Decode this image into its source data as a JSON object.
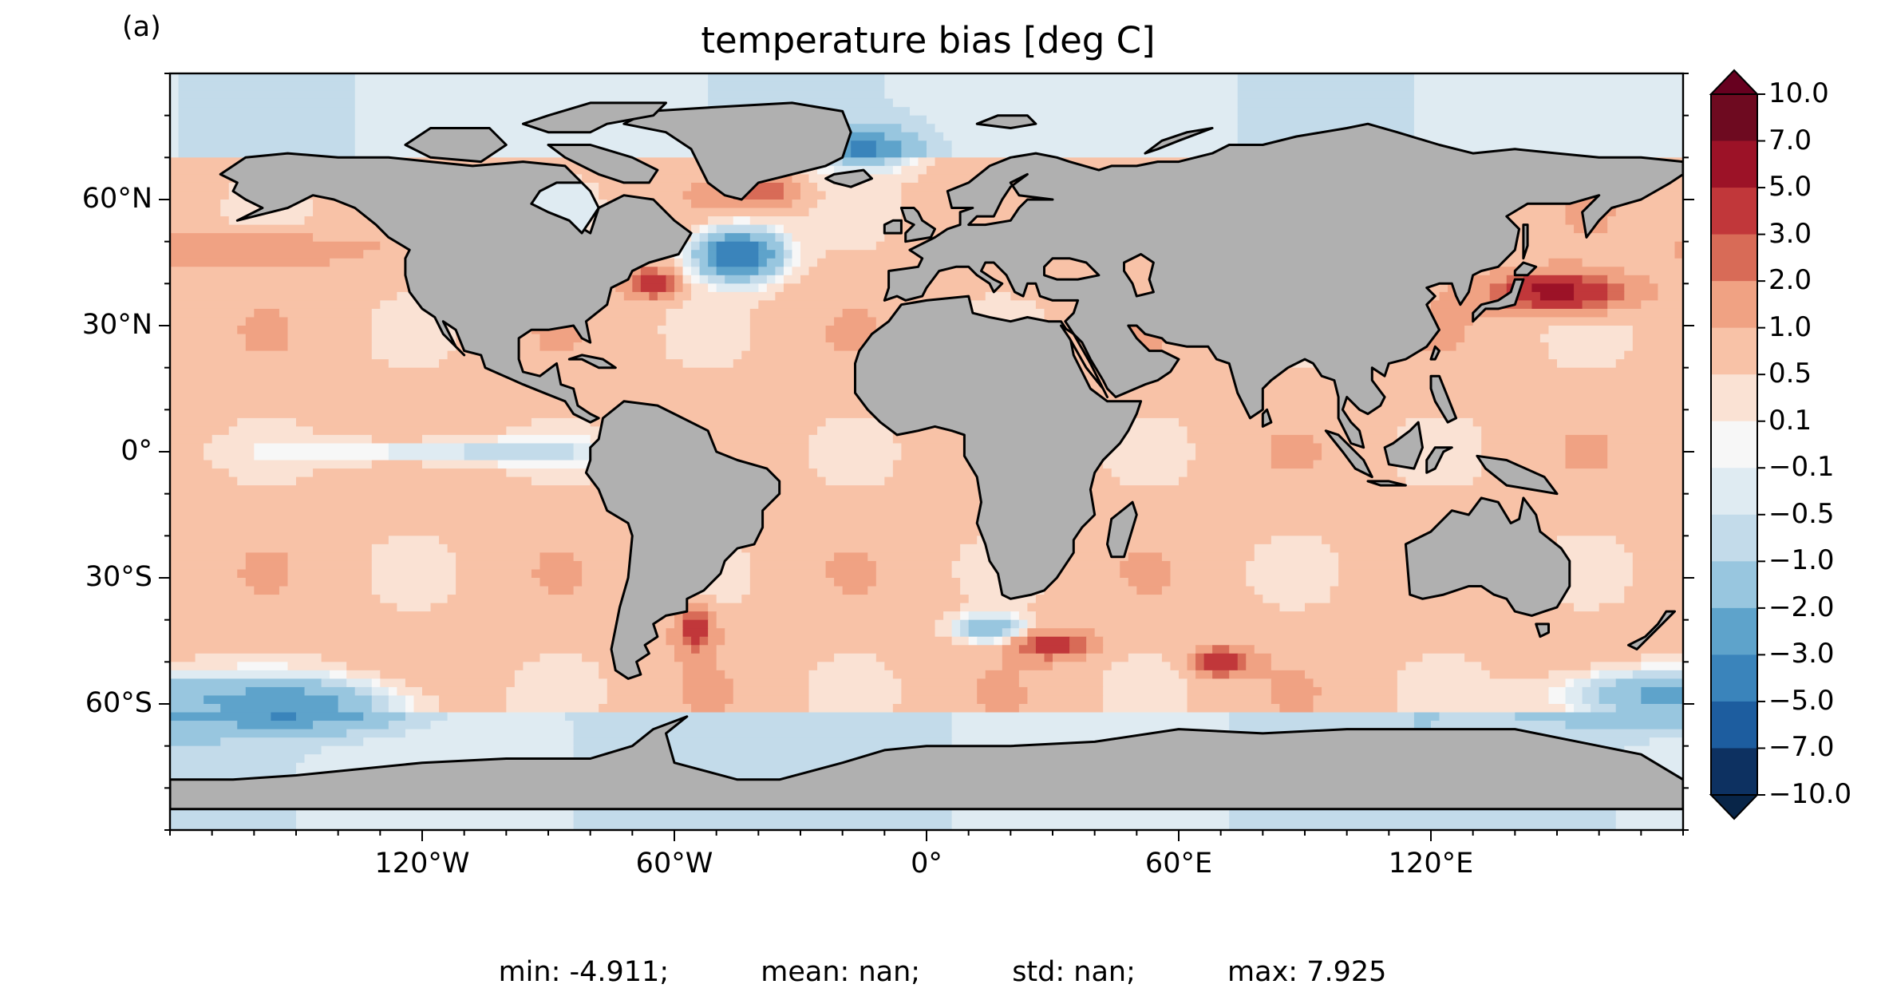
{
  "panel_label": "(a)",
  "title": "temperature bias [deg C]",
  "stats": {
    "min": "min: -4.911;",
    "mean": "mean: nan;",
    "std": "std: nan;",
    "max": "max: 7.925"
  },
  "map": {
    "projection": "PlateCarree",
    "lon_range": [
      -180,
      180
    ],
    "lat_range": [
      -90,
      90
    ],
    "land_color": "#b0b0b0",
    "coastline_color": "#000000",
    "lon_ticks": [
      {
        "value": -120,
        "label": "120°W"
      },
      {
        "value": -60,
        "label": "60°W"
      },
      {
        "value": 0,
        "label": "0°"
      },
      {
        "value": 60,
        "label": "60°E"
      },
      {
        "value": 120,
        "label": "120°E"
      }
    ],
    "lat_ticks": [
      {
        "value": 60,
        "label": "60°N"
      },
      {
        "value": 30,
        "label": "30°N"
      },
      {
        "value": 0,
        "label": "0°"
      },
      {
        "value": -30,
        "label": "30°S"
      },
      {
        "value": -60,
        "label": "60°S"
      }
    ],
    "field": {
      "background_bias": 0.7,
      "features": [
        {
          "lon": -45,
          "lat": 47,
          "value": -4.5,
          "rlon": 10,
          "rlat": 6
        },
        {
          "lon": -15,
          "lat": 72,
          "value": -2.0,
          "rlon": 12,
          "rlat": 5
        },
        {
          "lon": -65,
          "lat": 40,
          "value": 5.0,
          "rlon": 5,
          "rlat": 3
        },
        {
          "lon": 150,
          "lat": 38,
          "value": 6.0,
          "rlon": 14,
          "rlat": 4
        },
        {
          "lon": -55,
          "lat": -42,
          "value": 4.0,
          "rlon": 4,
          "rlat": 5
        },
        {
          "lon": 30,
          "lat": -46,
          "value": 4.0,
          "rlon": 8,
          "rlat": 3
        },
        {
          "lon": 70,
          "lat": -50,
          "value": 4.5,
          "rlon": 6,
          "rlat": 3
        },
        {
          "lon": 15,
          "lat": -42,
          "value": -2.0,
          "rlon": 8,
          "rlat": 3
        },
        {
          "lon": -150,
          "lat": -60,
          "value": -2.5,
          "rlon": 25,
          "rlat": 6
        },
        {
          "lon": 170,
          "lat": -58,
          "value": -2.0,
          "rlon": 20,
          "rlat": 6
        },
        {
          "lon": -110,
          "lat": 0,
          "value": -0.8,
          "rlon": 40,
          "rlat": 3
        },
        {
          "lon": -40,
          "lat": 62,
          "value": 3.0,
          "rlon": 8,
          "rlat": 3
        },
        {
          "lon": -160,
          "lat": 48,
          "value": 2.0,
          "rlon": 20,
          "rlat": 4
        }
      ]
    }
  },
  "colorbar": {
    "boundaries": [
      -10,
      -7,
      -5,
      -3,
      -2,
      -1,
      -0.5,
      -0.1,
      0.1,
      0.5,
      1,
      2,
      3,
      5,
      7,
      10
    ],
    "tick_labels": [
      "10.0",
      "7.0",
      "5.0",
      "3.0",
      "2.0",
      "1.0",
      "0.5",
      "0.1",
      "−0.1",
      "−0.5",
      "−1.0",
      "−2.0",
      "−3.0",
      "−5.0",
      "−7.0",
      "−10.0"
    ],
    "colors": [
      "#0d3161",
      "#1d5d9f",
      "#3a84bb",
      "#5ea3cb",
      "#98c6df",
      "#c3dbea",
      "#dfebf2",
      "#f7f7f7",
      "#fae2d4",
      "#f8c2a7",
      "#f0a283",
      "#d86b57",
      "#c1373a",
      "#9c1227",
      "#6e0a20"
    ],
    "under_color": "#082548",
    "over_color": "#67001f",
    "extend": "both"
  }
}
